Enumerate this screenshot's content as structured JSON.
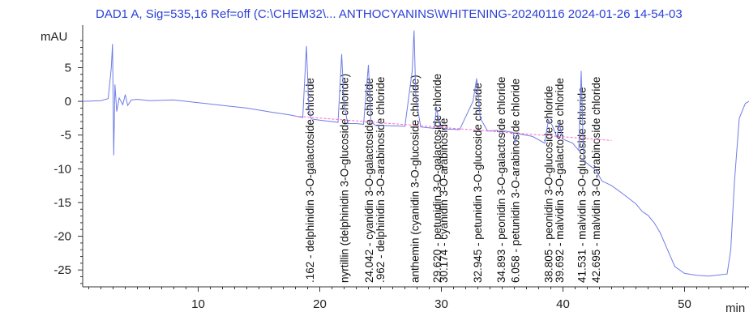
{
  "chart_data": {
    "type": "line",
    "title": "DAD1 A, Sig=535,16 Ref=off (C:\\CHEM32\\... ANTHOCYANINS\\WHITENING-20240116 2024-01-26 14-54-03",
    "ylabel": "mAU",
    "xlabel": "min",
    "xlim": [
      0.5,
      55.3
    ],
    "ylim": [
      -27.5,
      11.3
    ],
    "x_ticks": [
      10,
      20,
      30,
      40,
      50
    ],
    "y_ticks": [
      5,
      0,
      -5,
      -10,
      -15,
      -20,
      -25
    ],
    "colors": {
      "trace": "#6f7de6",
      "baseline": "#ff66cc",
      "title": "#2a3fd6"
    },
    "series": [
      {
        "x": [
          0.5,
          2.0,
          2.6,
          2.85,
          2.95,
          3.05,
          3.15,
          3.3,
          3.5,
          3.8,
          4.0,
          4.2,
          4.5,
          5.0,
          6.0,
          8.0,
          10.0,
          12.0,
          14.0,
          16.0,
          17.5,
          18.6,
          18.9,
          19.1,
          19.3,
          19.6,
          20.5,
          21.5,
          21.8,
          22.0,
          22.3,
          23.0,
          23.6,
          24.0,
          24.2,
          24.6,
          25.5,
          27.0,
          27.6,
          27.75,
          27.9,
          28.3,
          28.8,
          29.4,
          29.6,
          29.9,
          30.4,
          31.5,
          32.6,
          32.9,
          33.2,
          33.8,
          34.6,
          34.9,
          35.2,
          35.9,
          36.05,
          36.3,
          37.5,
          38.5,
          38.8,
          39.1,
          39.5,
          39.7,
          40.0,
          40.8,
          41.3,
          41.5,
          41.7,
          42.2,
          42.7,
          43.2,
          44.0,
          45.0,
          46.0,
          46.5,
          47.0,
          47.5,
          48.0,
          48.6,
          49.2,
          50.0,
          51.0,
          52.0,
          53.0,
          53.5,
          53.8,
          54.1,
          54.5,
          55.0,
          55.3
        ],
        "y": [
          0.0,
          0.1,
          0.4,
          5.0,
          8.5,
          -8.0,
          2.5,
          -1.5,
          0.5,
          -0.5,
          1.0,
          -0.6,
          0.2,
          0.3,
          0.1,
          0.2,
          -0.2,
          -0.6,
          -1.0,
          -1.6,
          -2.0,
          -2.4,
          8.2,
          -1.0,
          -2.6,
          -2.7,
          -2.9,
          -3.1,
          7.0,
          -0.5,
          -3.3,
          -3.3,
          -3.4,
          5.4,
          -3.0,
          -3.6,
          -3.6,
          -3.7,
          4.5,
          10.5,
          0.5,
          -3.8,
          -3.9,
          -4.0,
          -1.0,
          -3.8,
          -4.1,
          -4.2,
          0.0,
          3.4,
          -2.5,
          -4.4,
          -4.3,
          -4.8,
          -4.4,
          -4.6,
          -6.1,
          -4.8,
          -5.2,
          -6.2,
          -2.8,
          -3.5,
          -5.3,
          -3.3,
          -5.6,
          -6.2,
          -7.3,
          4.5,
          -8.8,
          -9.5,
          -10.2,
          -11.8,
          -12.5,
          -13.8,
          -15.2,
          -16.3,
          -16.9,
          -18.0,
          -19.5,
          -22.0,
          -24.5,
          -25.5,
          -25.8,
          -25.9,
          -25.7,
          -25.6,
          -22.0,
          -12.0,
          -2.5,
          -0.3,
          0.0
        ]
      }
    ],
    "baseline": {
      "x": [
        18.0,
        44.0
      ],
      "y": [
        -2.2,
        -5.8
      ]
    },
    "peaks": [
      {
        "rt": 19.162,
        "x": 19.16,
        "label": ".162 -  delphinidin 3-O-galactoside chloride"
      },
      {
        "rt": 22.0,
        "x": 22.0,
        "label": "nyrtillin (delphinidin 3-O-glucoside chloride)"
      },
      {
        "rt": 24.042,
        "x": 24.04,
        "label": "24.042 -  cyanidin 3-O-galactoside chloride"
      },
      {
        "rt": 24.962,
        "x": 24.96,
        "label": ".962 -  delphinidin 3-O-arabinoside chloride"
      },
      {
        "rt": 27.8,
        "x": 27.8,
        "label": "anthemin (cyanidin 3-O-glucoside chloride)"
      },
      {
        "rt": 29.62,
        "x": 29.62,
        "label": "29.620 -  petunidin 3-O-galactoside chloride"
      },
      {
        "rt": 30.174,
        "x": 30.17,
        "label": "30.174 -  cyanidin 3-O-arabinoside"
      },
      {
        "rt": 32.945,
        "x": 32.95,
        "label": "32.945 -  petunidin 3-O-glucoside chloride"
      },
      {
        "rt": 34.893,
        "x": 34.89,
        "label": "34.893 -  peonidin 3-O-galactoside chloride"
      },
      {
        "rt": 36.058,
        "x": 36.06,
        "label": "6.058 -  petunidin 3-O-arabinoside chloride"
      },
      {
        "rt": 38.805,
        "x": 38.81,
        "label": "38.805 -  peonidin 3-O-glucoside chloride"
      },
      {
        "rt": 39.692,
        "x": 39.69,
        "label": "39.692 -  malvidin 3-O-galactoside chloride"
      },
      {
        "rt": 41.531,
        "x": 41.53,
        "label": "41.531 -  malvidin 3-O-glucoside chloride"
      },
      {
        "rt": 42.695,
        "x": 42.7,
        "label": "42.695 -  malvidin 3-O-arabinoside chloride"
      }
    ]
  }
}
